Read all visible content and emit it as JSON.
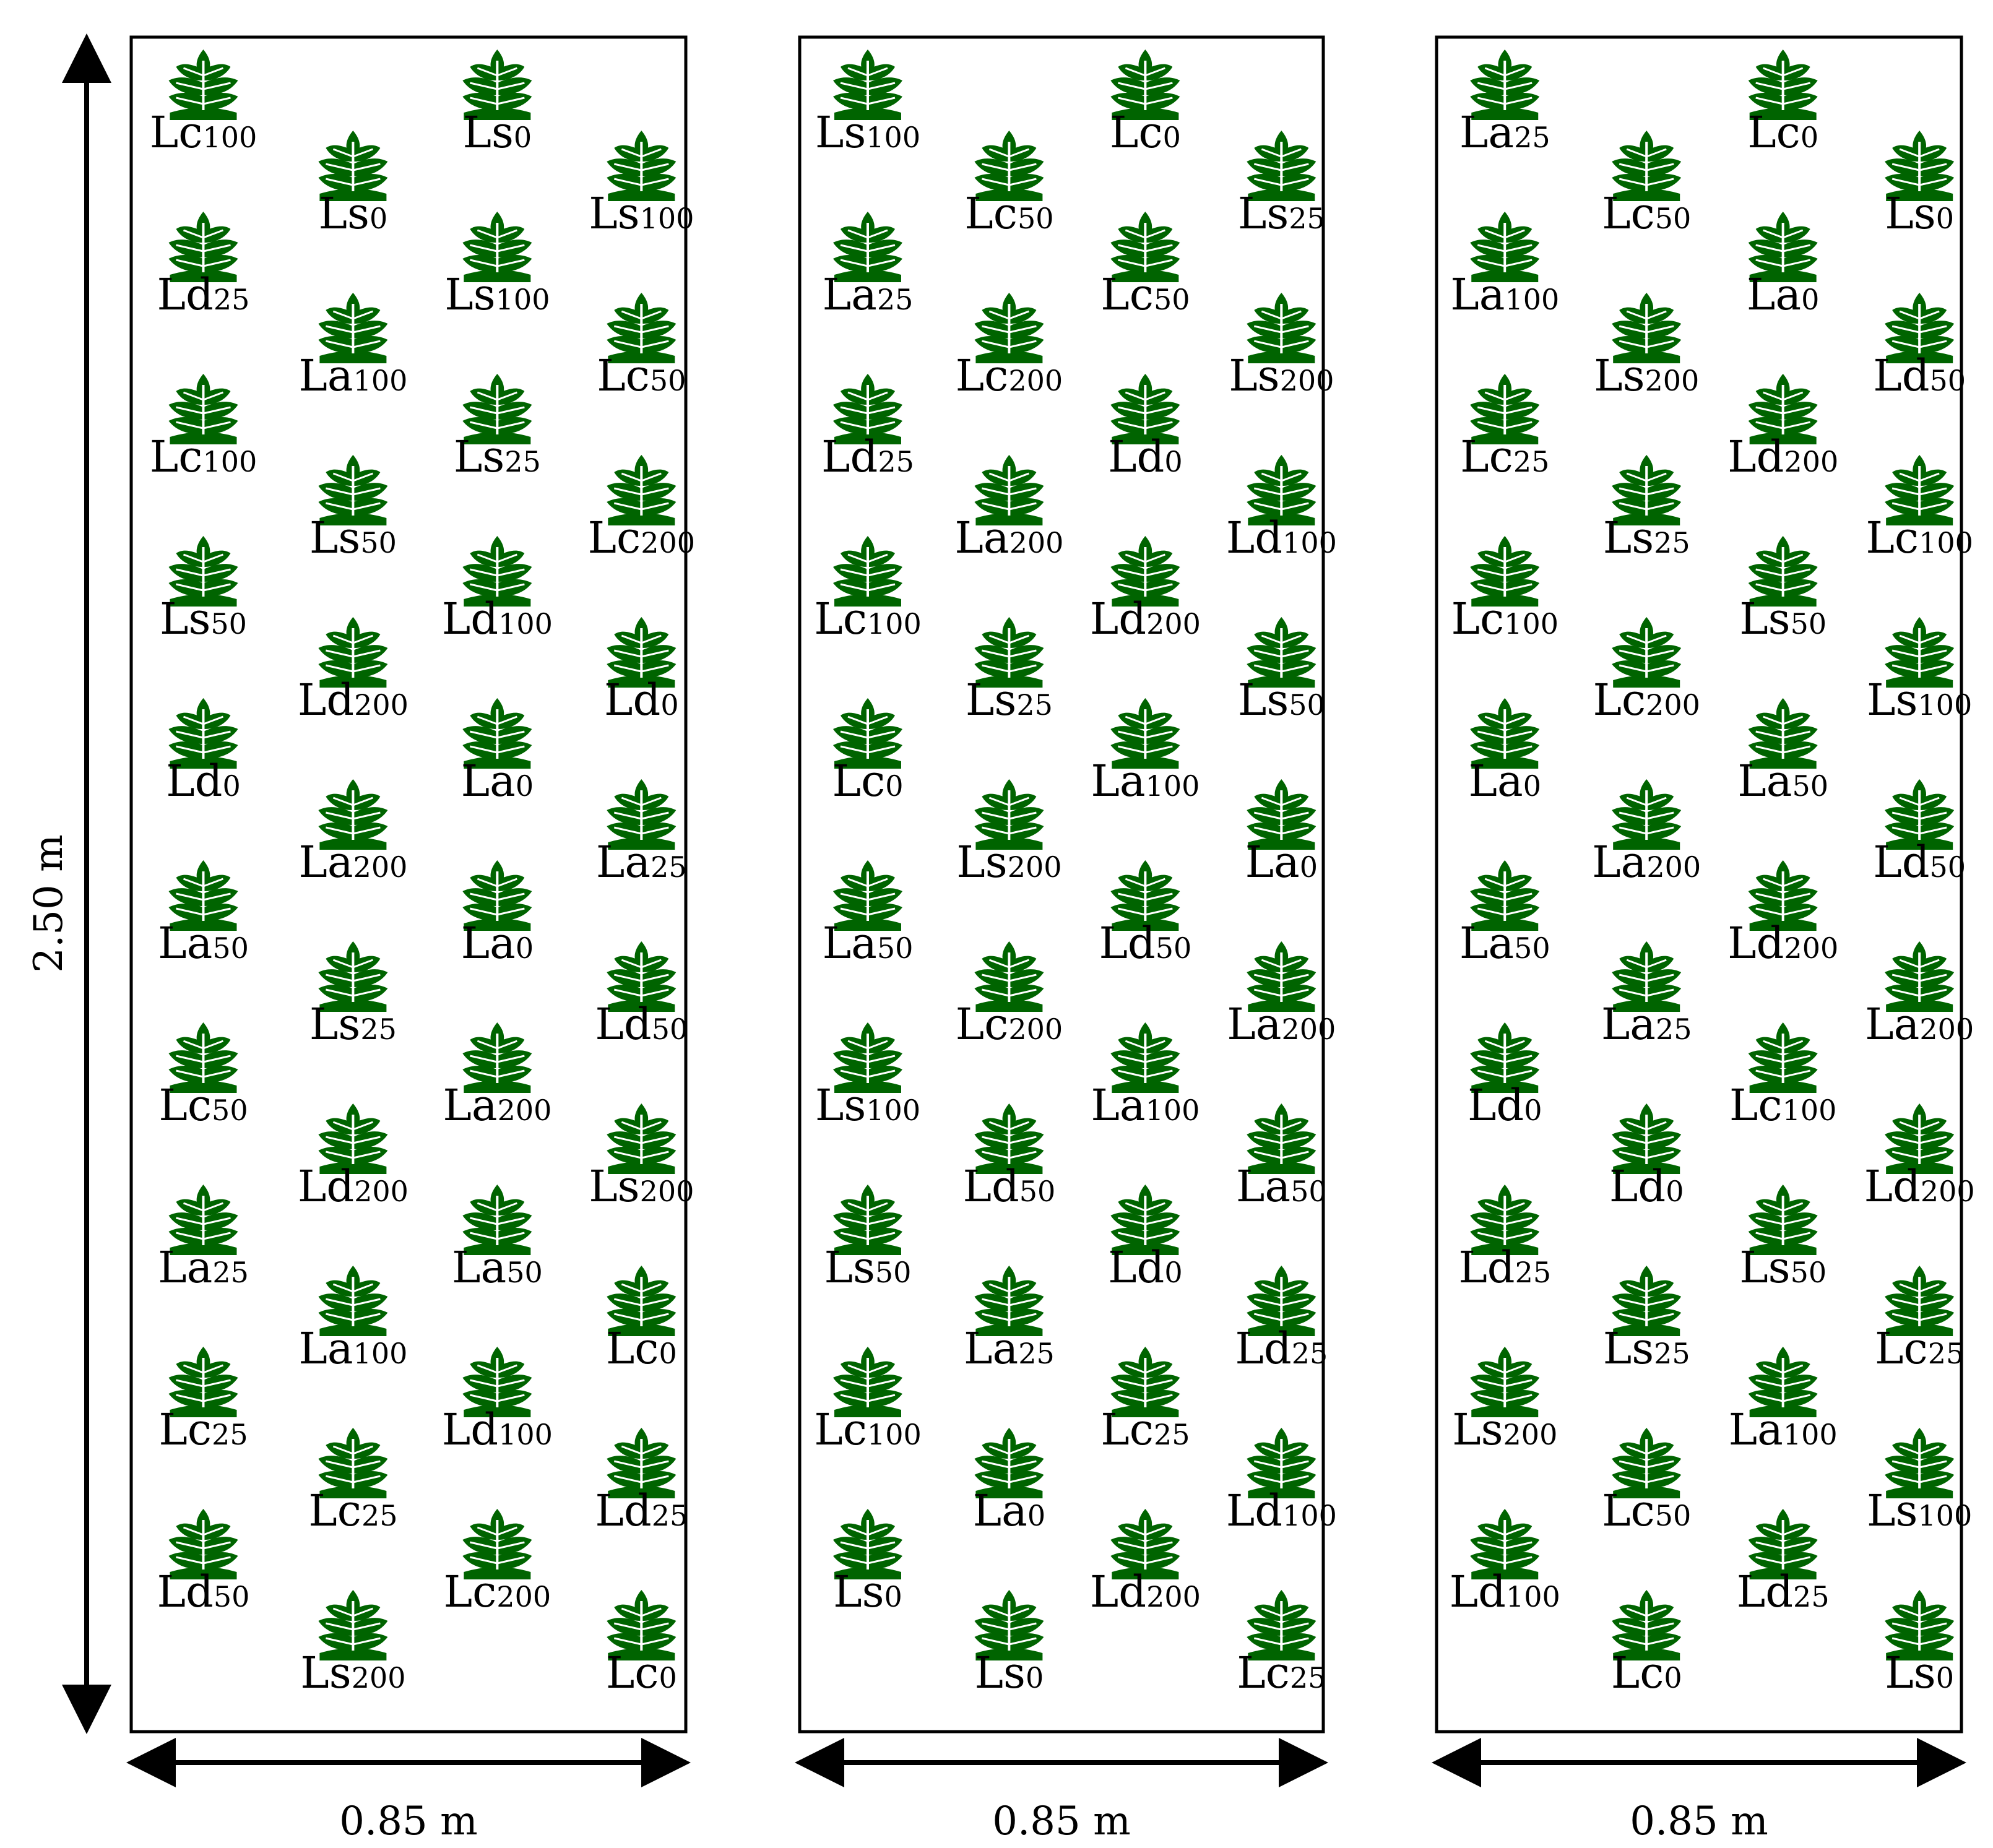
{
  "vertical_dimension": {
    "label": "2.50 m"
  },
  "plant_icon": {
    "name": "plant-icon",
    "color": "#006400"
  },
  "plots": [
    {
      "width_label": "0.85 m",
      "icon_rows": [
        [
          1,
          0,
          1,
          0
        ],
        [
          0,
          1,
          0,
          1
        ],
        [
          1,
          0,
          1,
          0
        ],
        [
          0,
          1,
          0,
          1
        ],
        [
          1,
          0,
          1,
          0
        ],
        [
          0,
          1,
          0,
          1
        ],
        [
          1,
          0,
          1,
          0
        ],
        [
          0,
          1,
          0,
          1
        ],
        [
          1,
          0,
          1,
          0
        ],
        [
          0,
          1,
          0,
          1
        ],
        [
          1,
          0,
          1,
          0
        ],
        [
          0,
          1,
          0,
          1
        ],
        [
          1,
          0,
          1,
          0
        ],
        [
          0,
          1,
          0,
          1
        ],
        [
          1,
          0,
          1,
          0
        ],
        [
          0,
          1,
          0,
          1
        ],
        [
          1,
          0,
          1,
          0
        ],
        [
          0,
          1,
          0,
          1
        ],
        [
          1,
          0,
          1,
          0
        ],
        [
          0,
          1,
          0,
          1
        ]
      ],
      "label_rows": [
        [
          [
            "Lc",
            "100"
          ],
          null,
          [
            "Ls",
            "0"
          ],
          null
        ],
        [
          null,
          [
            "Ls",
            "0"
          ],
          null,
          [
            "Ls",
            "100"
          ]
        ],
        [
          [
            "Ld",
            "25"
          ],
          null,
          [
            "Ls",
            "100"
          ],
          null
        ],
        [
          null,
          [
            "La",
            "100"
          ],
          null,
          [
            "Lc",
            "50"
          ]
        ],
        [
          [
            "Lc",
            "100"
          ],
          null,
          [
            "Ls",
            "25"
          ],
          null
        ],
        [
          null,
          [
            "Ls",
            "50"
          ],
          null,
          [
            "Lc",
            "200"
          ]
        ],
        [
          [
            "Ls",
            "50"
          ],
          null,
          [
            "Ld",
            "100"
          ],
          null
        ],
        [
          null,
          [
            "Ld",
            "200"
          ],
          null,
          [
            "Ld",
            "0"
          ]
        ],
        [
          [
            "Ld",
            "0"
          ],
          null,
          [
            "La",
            "0"
          ],
          null
        ],
        [
          null,
          [
            "La",
            "200"
          ],
          null,
          [
            "La",
            "25"
          ]
        ],
        [
          [
            "La",
            "50"
          ],
          null,
          [
            "La",
            "0"
          ],
          null
        ],
        [
          null,
          [
            "Ls",
            "25"
          ],
          null,
          [
            "Ld",
            "50"
          ]
        ],
        [
          [
            "Lc",
            "50"
          ],
          null,
          [
            "La",
            "200"
          ],
          null
        ],
        [
          null,
          [
            "Ld",
            "200"
          ],
          null,
          [
            "Ls",
            "200"
          ]
        ],
        [
          [
            "La",
            "25"
          ],
          null,
          [
            "La",
            "50"
          ],
          null
        ],
        [
          null,
          [
            "La",
            "100"
          ],
          null,
          [
            "Lc",
            "0"
          ]
        ],
        [
          [
            "Lc",
            "25"
          ],
          null,
          [
            "Ld",
            "100"
          ],
          null
        ],
        [
          null,
          [
            "Lc",
            "25"
          ],
          null,
          [
            "Ld",
            "25"
          ]
        ],
        [
          [
            "Ld",
            "50"
          ],
          null,
          [
            "Lc",
            "200"
          ],
          null
        ],
        [
          null,
          [
            "Ls",
            "200"
          ],
          null,
          [
            "Lc",
            "0"
          ]
        ]
      ]
    },
    {
      "width_label": "0.85 m",
      "icon_rows": [
        [
          1,
          0,
          1,
          0
        ],
        [
          0,
          1,
          0,
          1
        ],
        [
          1,
          0,
          1,
          0
        ],
        [
          0,
          1,
          0,
          1
        ],
        [
          1,
          0,
          1,
          0
        ],
        [
          0,
          1,
          0,
          1
        ],
        [
          1,
          0,
          1,
          0
        ],
        [
          0,
          1,
          0,
          1
        ],
        [
          1,
          0,
          1,
          0
        ],
        [
          0,
          1,
          0,
          1
        ],
        [
          1,
          0,
          1,
          0
        ],
        [
          0,
          1,
          0,
          1
        ],
        [
          1,
          0,
          1,
          0
        ],
        [
          0,
          1,
          0,
          1
        ],
        [
          1,
          0,
          1,
          0
        ],
        [
          0,
          1,
          0,
          1
        ],
        [
          1,
          0,
          1,
          0
        ],
        [
          0,
          1,
          0,
          1
        ],
        [
          1,
          0,
          1,
          0
        ],
        [
          0,
          1,
          0,
          1
        ]
      ],
      "label_rows": [
        [
          [
            "Ls",
            "100"
          ],
          null,
          [
            "Lc",
            "0"
          ],
          null
        ],
        [
          null,
          [
            "Lc",
            "50"
          ],
          null,
          [
            "Ls",
            "25"
          ]
        ],
        [
          [
            "La",
            "25"
          ],
          null,
          [
            "Lc",
            "50"
          ],
          null
        ],
        [
          null,
          [
            "Lc",
            "200"
          ],
          null,
          [
            "Ls",
            "200"
          ]
        ],
        [
          [
            "Ld",
            "25"
          ],
          null,
          [
            "Ld",
            "0"
          ],
          null
        ],
        [
          null,
          [
            "La",
            "200"
          ],
          null,
          [
            "Ld",
            "100"
          ]
        ],
        [
          [
            "Lc",
            "100"
          ],
          null,
          [
            "Ld",
            "200"
          ],
          null
        ],
        [
          null,
          [
            "Ls",
            "25"
          ],
          null,
          [
            "Ls",
            "50"
          ]
        ],
        [
          [
            "Lc",
            "0"
          ],
          null,
          [
            "La",
            "100"
          ],
          null
        ],
        [
          null,
          [
            "Ls",
            "200"
          ],
          null,
          [
            "La",
            "0"
          ]
        ],
        [
          [
            "La",
            "50"
          ],
          null,
          [
            "Ld",
            "50"
          ],
          null
        ],
        [
          null,
          [
            "Lc",
            "200"
          ],
          null,
          [
            "La",
            "200"
          ]
        ],
        [
          [
            "Ls",
            "100"
          ],
          null,
          [
            "La",
            "100"
          ],
          null
        ],
        [
          null,
          [
            "Ld",
            "50"
          ],
          null,
          [
            "La",
            "50"
          ]
        ],
        [
          [
            "Ls",
            "50"
          ],
          null,
          [
            "Ld",
            "0"
          ],
          null
        ],
        [
          null,
          [
            "La",
            "25"
          ],
          null,
          [
            "Ld",
            "25"
          ]
        ],
        [
          [
            "Lc",
            "100"
          ],
          null,
          [
            "Lc",
            "25"
          ],
          null
        ],
        [
          null,
          [
            "La",
            "0"
          ],
          null,
          [
            "Ld",
            "100"
          ]
        ],
        [
          [
            "Ls",
            "0"
          ],
          null,
          [
            "Ld",
            "200"
          ],
          null
        ],
        [
          null,
          [
            "Ls",
            "0"
          ],
          null,
          [
            "Lc",
            "25"
          ]
        ]
      ]
    },
    {
      "width_label": "0.85 m",
      "icon_rows": [
        [
          1,
          0,
          1,
          0
        ],
        [
          0,
          1,
          0,
          1
        ],
        [
          1,
          0,
          1,
          0
        ],
        [
          0,
          1,
          0,
          1
        ],
        [
          1,
          0,
          1,
          0
        ],
        [
          0,
          1,
          0,
          1
        ],
        [
          1,
          0,
          1,
          0
        ],
        [
          0,
          1,
          0,
          1
        ],
        [
          1,
          0,
          1,
          0
        ],
        [
          0,
          1,
          0,
          1
        ],
        [
          1,
          0,
          1,
          0
        ],
        [
          0,
          1,
          0,
          1
        ],
        [
          1,
          0,
          1,
          0
        ],
        [
          0,
          1,
          0,
          1
        ],
        [
          1,
          0,
          1,
          0
        ],
        [
          0,
          1,
          0,
          1
        ],
        [
          1,
          0,
          1,
          0
        ],
        [
          0,
          1,
          0,
          1
        ],
        [
          1,
          0,
          1,
          0
        ],
        [
          0,
          1,
          0,
          1
        ]
      ],
      "label_rows": [
        [
          [
            "La",
            "25"
          ],
          null,
          [
            "Lc",
            "0"
          ],
          null
        ],
        [
          null,
          [
            "Lc",
            "50"
          ],
          null,
          [
            "Ls",
            "0"
          ]
        ],
        [
          [
            "La",
            "100"
          ],
          null,
          [
            "La",
            "0"
          ],
          null
        ],
        [
          null,
          [
            "Ls",
            "200"
          ],
          null,
          [
            "Ld",
            "50"
          ]
        ],
        [
          [
            "Lc",
            "25"
          ],
          null,
          [
            "Ld",
            "200"
          ],
          null
        ],
        [
          null,
          [
            "Ls",
            "25"
          ],
          null,
          [
            "Lc",
            "100"
          ]
        ],
        [
          [
            "Lc",
            "100"
          ],
          null,
          [
            "Ls",
            "50"
          ],
          null
        ],
        [
          null,
          [
            "Lc",
            "200"
          ],
          null,
          [
            "Ls",
            "100"
          ]
        ],
        [
          [
            "La",
            "0"
          ],
          null,
          [
            "La",
            "50"
          ],
          null
        ],
        [
          null,
          [
            "La",
            "200"
          ],
          null,
          [
            "Ld",
            "50"
          ]
        ],
        [
          [
            "La",
            "50"
          ],
          null,
          [
            "Ld",
            "200"
          ],
          null
        ],
        [
          null,
          [
            "La",
            "25"
          ],
          null,
          [
            "La",
            "200"
          ]
        ],
        [
          [
            "Ld",
            "0"
          ],
          null,
          [
            "Lc",
            "100"
          ],
          null
        ],
        [
          null,
          [
            "Ld",
            "0"
          ],
          null,
          [
            "Ld",
            "200"
          ]
        ],
        [
          [
            "Ld",
            "25"
          ],
          null,
          [
            "Ls",
            "50"
          ],
          null
        ],
        [
          null,
          [
            "Ls",
            "25"
          ],
          null,
          [
            "Lc",
            "25"
          ]
        ],
        [
          [
            "Ls",
            "200"
          ],
          null,
          [
            "La",
            "100"
          ],
          null
        ],
        [
          null,
          [
            "Lc",
            "50"
          ],
          null,
          [
            "Ls",
            "100"
          ]
        ],
        [
          [
            "Ld",
            "100"
          ],
          null,
          [
            "Ld",
            "25"
          ],
          null
        ],
        [
          null,
          [
            "Lc",
            "0"
          ],
          null,
          [
            "Ls",
            "0"
          ]
        ]
      ]
    }
  ]
}
